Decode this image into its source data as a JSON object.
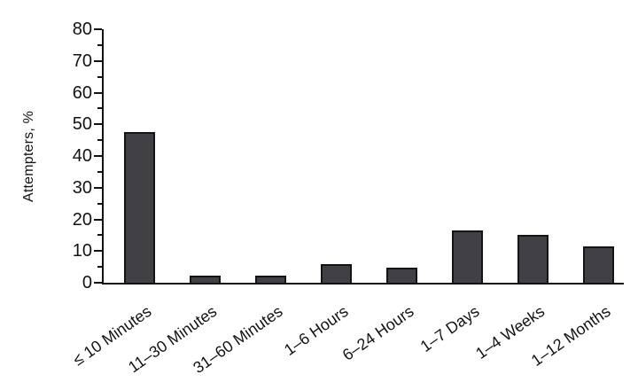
{
  "chart_data": {
    "type": "bar",
    "title": "",
    "xlabel": "",
    "ylabel": "Attempters, %",
    "categories": [
      "≤ 10 Minutes",
      "11–30 Minutes",
      "31–60 Minutes",
      "1–6 Hours",
      "6–24 Hours",
      "1–7 Days",
      "1–4 Weeks",
      "1–12 Months"
    ],
    "values": [
      47.5,
      2.3,
      2.3,
      5.8,
      4.7,
      16.6,
      15.1,
      11.6
    ],
    "ylim": [
      0,
      80
    ],
    "ytick_step": 10,
    "minor_tick_step": 5,
    "grid": false,
    "legend": null,
    "colors": {
      "bar_fill": "#414045",
      "bar_border": "#141414",
      "axis_ink": "#121316",
      "background": "#ffffff"
    }
  }
}
